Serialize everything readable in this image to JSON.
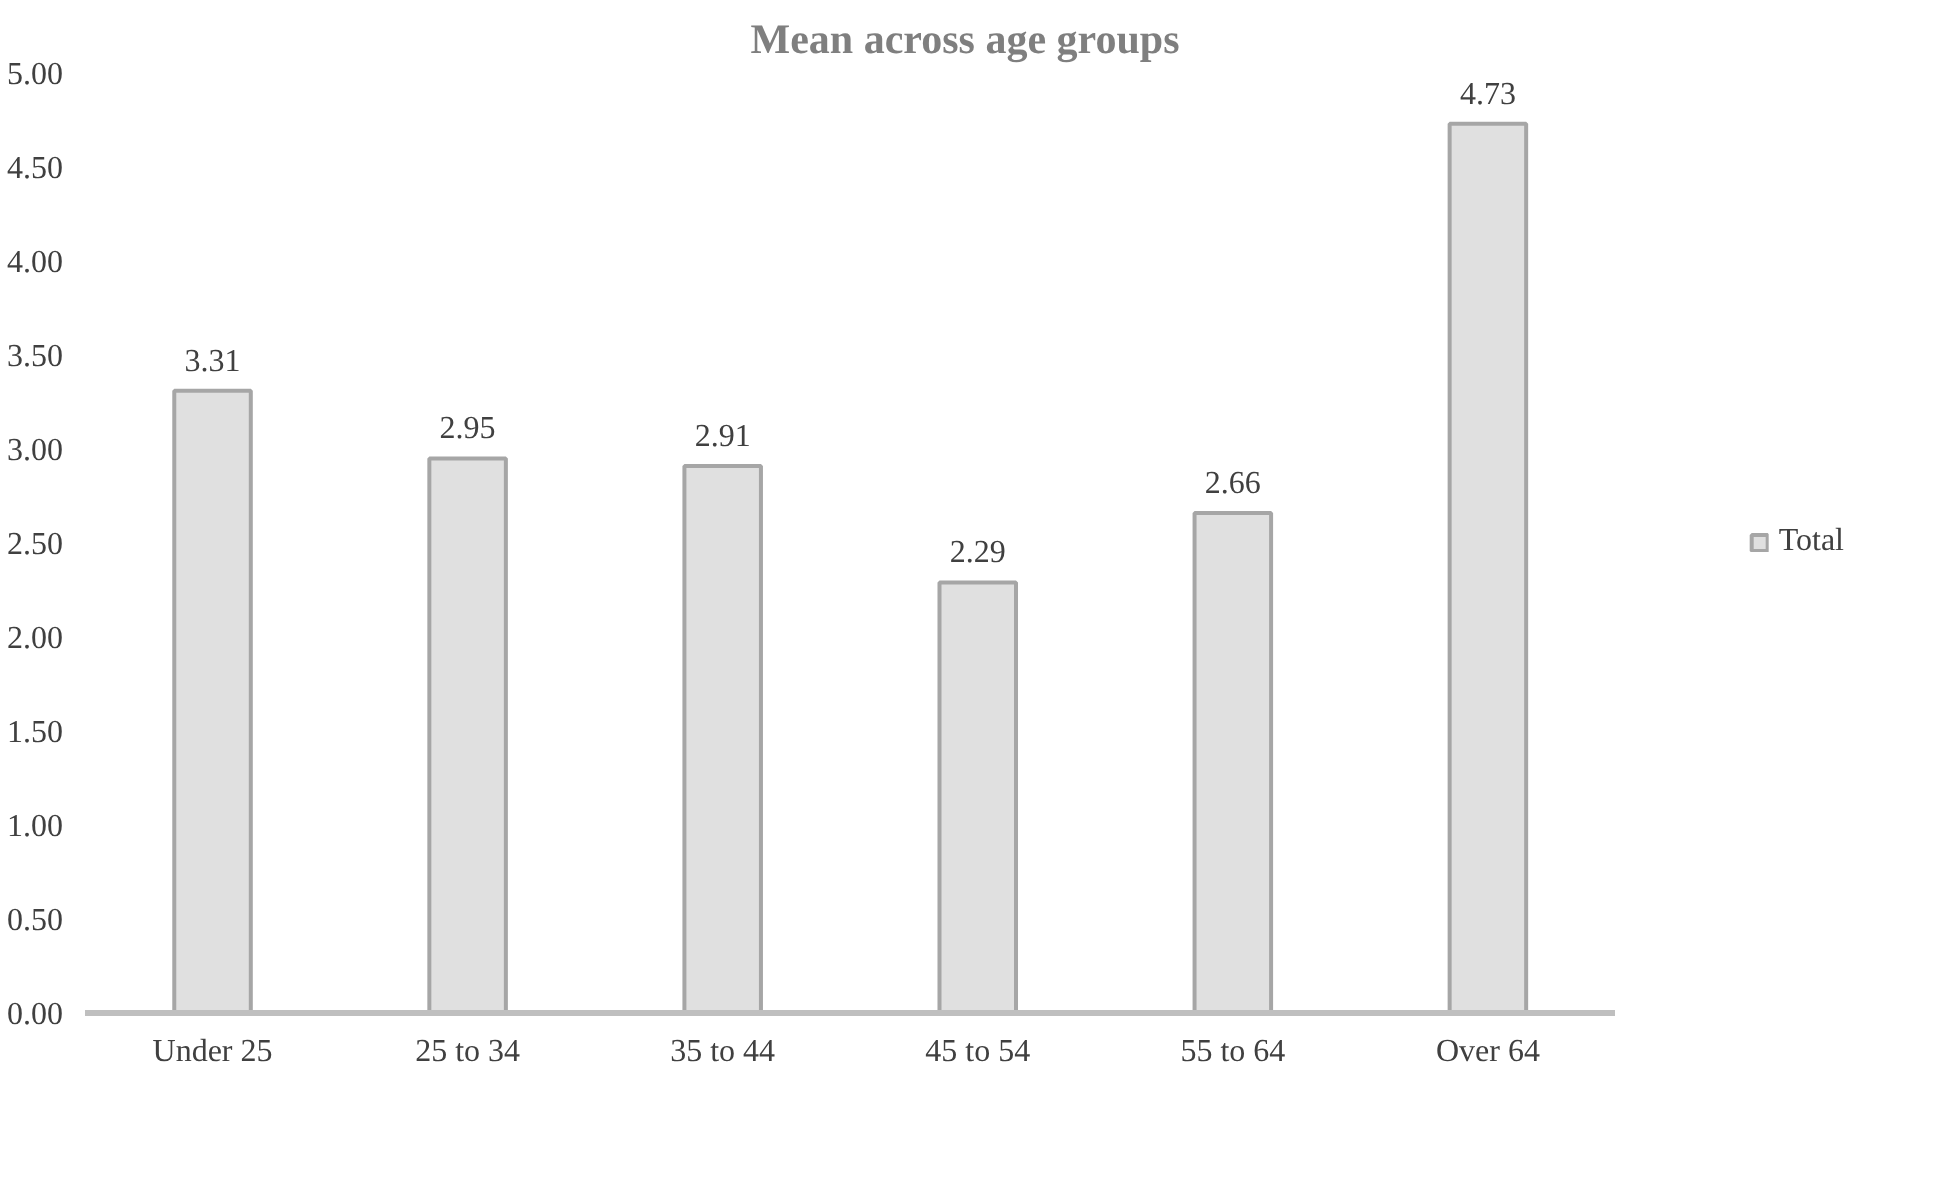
{
  "chart_data": {
    "type": "bar",
    "title": "Mean across age groups",
    "categories": [
      "Under 25",
      "25 to 34",
      "35 to 44",
      "45 to 54",
      "55 to 64",
      "Over 64"
    ],
    "series": [
      {
        "name": "Total",
        "color": "#a6a6a6",
        "values": [
          3.31,
          2.95,
          2.91,
          2.29,
          2.66,
          4.73
        ]
      }
    ],
    "ylim": [
      0,
      5
    ],
    "yticks": [
      {
        "value": 0,
        "label": "0.00"
      },
      {
        "value": 0.5,
        "label": "0.50"
      },
      {
        "value": 1,
        "label": "1.00"
      },
      {
        "value": 1.5,
        "label": "1.50"
      },
      {
        "value": 2,
        "label": "2.00"
      },
      {
        "value": 2.5,
        "label": "2.50"
      },
      {
        "value": 3,
        "label": "3.00"
      },
      {
        "value": 3.5,
        "label": "3.50"
      },
      {
        "value": 4,
        "label": "4.00"
      },
      {
        "value": 4.5,
        "label": "4.50"
      },
      {
        "value": 5,
        "label": "5.00"
      }
    ],
    "data_labels": true,
    "grid": false,
    "legend": "right"
  }
}
